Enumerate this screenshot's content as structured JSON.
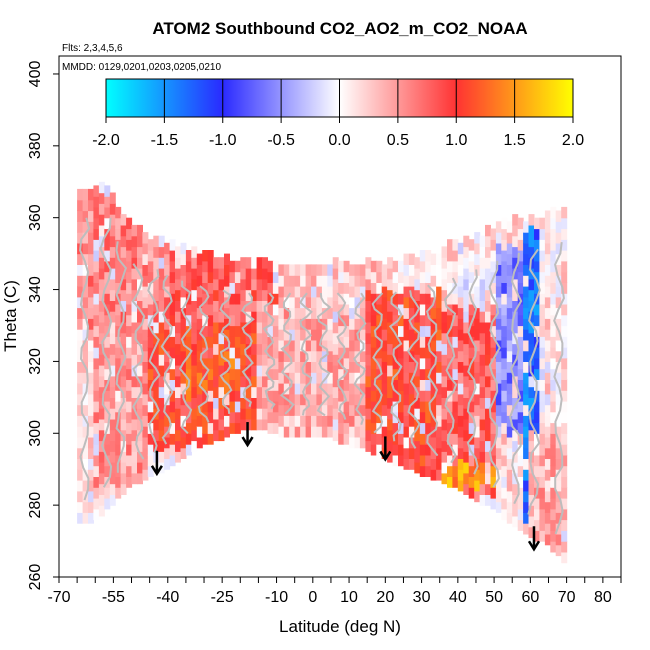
{
  "chart_data": {
    "type": "heatmap",
    "title": "ATOM2 Southbound CO2_AO2_m_CO2_NOAA",
    "flights_label": "Flts: 2,3,4,5,6",
    "dates_label": "MMDD: 0129,0201,0203,0205,0210",
    "xlabel": "Latitude (deg N)",
    "ylabel": "Theta (C)",
    "xlim": [
      -70,
      85
    ],
    "ylim": [
      260,
      405
    ],
    "x_ticks": [
      -70,
      -55,
      -40,
      -25,
      -10,
      0,
      10,
      20,
      30,
      40,
      50,
      60,
      70,
      80
    ],
    "x_tick_labels": [
      "-70",
      "-55",
      "-40",
      "-25",
      "-10",
      "0",
      "10",
      "20",
      "30",
      "40",
      "50",
      "60",
      "70",
      "80"
    ],
    "y_ticks": [
      260,
      280,
      300,
      320,
      340,
      360,
      380,
      400
    ],
    "y_tick_labels": [
      "260",
      "280",
      "300",
      "320",
      "340",
      "360",
      "380",
      "400"
    ],
    "colorbar": {
      "min": -2.0,
      "max": 2.0,
      "ticks": [
        -2.0,
        -1.5,
        -1.0,
        -0.5,
        0.0,
        0.5,
        1.0,
        1.5,
        2.0
      ],
      "tick_labels": [
        "-2.0",
        "-1.5",
        "-1.0",
        "-0.5",
        "0.0",
        "0.5",
        "1.0",
        "1.5",
        "2.0"
      ],
      "colors": [
        "#00ffff",
        "#2a2aff",
        "#ffffff",
        "#ff3333",
        "#ffff00"
      ]
    },
    "domain_top": [
      [
        -57,
        368
      ],
      [
        -55,
        365
      ],
      [
        -50,
        356
      ],
      [
        -40,
        352
      ],
      [
        -30,
        349
      ],
      [
        -20,
        347
      ],
      [
        -10,
        347
      ],
      [
        0,
        347
      ],
      [
        10,
        347
      ],
      [
        20,
        347
      ],
      [
        30,
        348
      ],
      [
        40,
        352
      ],
      [
        50,
        356
      ],
      [
        55,
        358
      ],
      [
        60,
        359
      ],
      [
        65,
        360
      ],
      [
        70,
        362
      ]
    ],
    "domain_bottom": [
      [
        -65,
        275
      ],
      [
        -60,
        276
      ],
      [
        -55,
        281
      ],
      [
        -50,
        286
      ],
      [
        -45,
        288
      ],
      [
        -40,
        291
      ],
      [
        -35,
        294
      ],
      [
        -30,
        297
      ],
      [
        -25,
        299
      ],
      [
        -20,
        301
      ],
      [
        -15,
        302
      ],
      [
        -10,
        300
      ],
      [
        -5,
        299
      ],
      [
        0,
        299
      ],
      [
        5,
        299
      ],
      [
        10,
        297
      ],
      [
        15,
        296
      ],
      [
        20,
        293
      ],
      [
        25,
        291
      ],
      [
        30,
        289
      ],
      [
        35,
        287
      ],
      [
        40,
        285
      ],
      [
        45,
        282
      ],
      [
        50,
        279
      ],
      [
        55,
        275
      ],
      [
        60,
        272
      ],
      [
        65,
        269
      ],
      [
        70,
        264
      ]
    ],
    "value_field": [
      {
        "lat": [
          -67,
          -40
        ],
        "theta": [
          330,
          368
        ],
        "value": 0.6
      },
      {
        "lat": [
          -40,
          -10
        ],
        "theta": [
          330,
          350
        ],
        "value": 0.8
      },
      {
        "lat": [
          -10,
          20
        ],
        "theta": [
          336,
          348
        ],
        "value": 0.3
      },
      {
        "lat": [
          -60,
          -45
        ],
        "theta": [
          285,
          330
        ],
        "value": 0.5
      },
      {
        "lat": [
          -45,
          -15
        ],
        "theta": [
          295,
          330
        ],
        "value": 1.0
      },
      {
        "lat": [
          -15,
          20
        ],
        "theta": [
          298,
          336
        ],
        "value": 0.4
      },
      {
        "lat": [
          15,
          35
        ],
        "theta": [
          288,
          340
        ],
        "value": 1.0
      },
      {
        "lat": [
          35,
          50
        ],
        "theta": [
          282,
          335
        ],
        "value": 0.8
      },
      {
        "lat": [
          40,
          55
        ],
        "theta": [
          338,
          352
        ],
        "value": 0.0
      },
      {
        "lat": [
          50,
          58
        ],
        "theta": [
          300,
          352
        ],
        "value": -0.6
      },
      {
        "lat": [
          58,
          62
        ],
        "theta": [
          275,
          358
        ],
        "value": -1.3
      },
      {
        "lat": [
          60,
          70
        ],
        "theta": [
          265,
          300
        ],
        "value": 0.4
      },
      {
        "lat": [
          35,
          50
        ],
        "theta": [
          285,
          292
        ],
        "value": 1.5
      },
      {
        "lat": [
          -35,
          -20
        ],
        "theta": [
          310,
          322
        ],
        "value": 1.2
      }
    ],
    "profiles_lat": [
      -63,
      -57,
      -53,
      -48,
      -44,
      -40,
      -35,
      -30,
      -24,
      -18,
      -12,
      -7,
      -2,
      3,
      8,
      13,
      18,
      23,
      28,
      33,
      38,
      44,
      50,
      56,
      61,
      68
    ],
    "arrows": [
      {
        "lat": -43,
        "theta": 289
      },
      {
        "lat": -18,
        "theta": 297
      },
      {
        "lat": 20,
        "theta": 293
      },
      {
        "lat": 61,
        "theta": 268
      }
    ]
  }
}
